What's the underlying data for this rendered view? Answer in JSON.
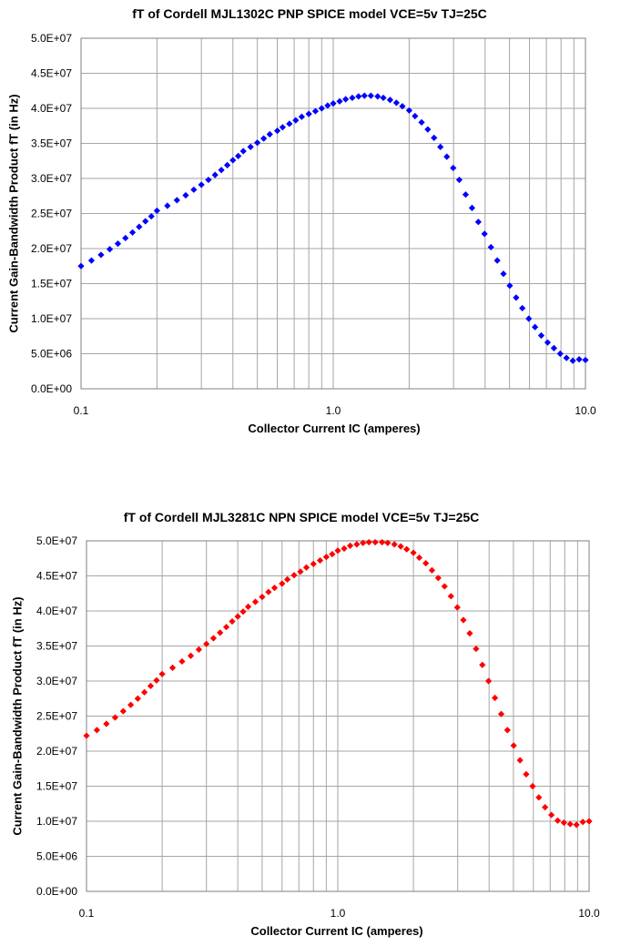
{
  "chart_data": [
    {
      "type": "scatter",
      "title": "fT of Cordell MJL1302C PNP SPICE model  VCE=5v  TJ=25C",
      "xlabel": "Collector Current IC (amperes)",
      "ylabel": "Current Gain-Bandwidth Product   fT (in Hz)",
      "x_scale": "log",
      "xlim": [
        0.1,
        10.0
      ],
      "ylim": [
        0,
        50000000
      ],
      "x_tick_labels": [
        "0.1",
        "1.0",
        "10.0"
      ],
      "y_tick_labels": [
        "0.0E+00",
        "5.0E+06",
        "1.0E+07",
        "1.5E+07",
        "2.0E+07",
        "2.5E+07",
        "3.0E+07",
        "3.5E+07",
        "4.0E+07",
        "4.5E+07",
        "5.0E+07"
      ],
      "grid": true,
      "marker_color": "#0000ff",
      "series": [
        {
          "x": [
            0.1,
            0.11,
            0.12,
            0.13,
            0.14,
            0.15,
            0.16,
            0.17,
            0.18,
            0.19,
            0.2,
            0.22,
            0.24,
            0.26,
            0.28,
            0.3,
            0.32,
            0.34,
            0.36,
            0.38,
            0.4,
            0.42,
            0.44,
            0.47,
            0.5,
            0.53,
            0.56,
            0.6,
            0.63,
            0.67,
            0.71,
            0.75,
            0.8,
            0.85,
            0.9,
            0.95,
            1.0,
            1.06,
            1.12,
            1.19,
            1.26,
            1.33,
            1.41,
            1.5,
            1.58,
            1.68,
            1.78,
            1.88,
            2.0,
            2.11,
            2.24,
            2.37,
            2.51,
            2.66,
            2.82,
            2.99,
            3.16,
            3.35,
            3.55,
            3.76,
            3.98,
            4.22,
            4.47,
            4.73,
            5.01,
            5.31,
            5.62,
            5.96,
            6.31,
            6.68,
            7.08,
            7.5,
            7.94,
            8.41,
            8.91,
            9.44,
            10.0
          ],
          "y": [
            17500000,
            18300000,
            19100000,
            19900000,
            20700000,
            21500000,
            22300000,
            23100000,
            23900000,
            24600000,
            25400000,
            26100000,
            26900000,
            27600000,
            28400000,
            29100000,
            29800000,
            30500000,
            31200000,
            31900000,
            32600000,
            33200000,
            33900000,
            34500000,
            35100000,
            35700000,
            36300000,
            36800000,
            37300000,
            37800000,
            38300000,
            38800000,
            39200000,
            39600000,
            40000000,
            40400000,
            40700000,
            41000000,
            41300000,
            41500000,
            41700000,
            41800000,
            41800000,
            41700000,
            41500000,
            41200000,
            40800000,
            40300000,
            39700000,
            38900000,
            38000000,
            37000000,
            35800000,
            34500000,
            33100000,
            31500000,
            29800000,
            27700000,
            25800000,
            23800000,
            22100000,
            20200000,
            18300000,
            16400000,
            14700000,
            13000000,
            11500000,
            10000000,
            8800000,
            7600000,
            6600000,
            5800000,
            5000000,
            4400000,
            4000000,
            4200000,
            4100000
          ]
        }
      ]
    },
    {
      "type": "scatter",
      "title": "fT of Cordell MJL3281C NPN SPICE model  VCE=5v  TJ=25C",
      "xlabel": "Collector Current IC (amperes)",
      "ylabel": "Current Gain-Bandwidth Product   fT (in Hz)",
      "x_scale": "log",
      "xlim": [
        0.1,
        10.0
      ],
      "ylim": [
        0,
        50000000
      ],
      "x_tick_labels": [
        "0.1",
        "1.0",
        "10.0"
      ],
      "y_tick_labels": [
        "0.0E+00",
        "5.0E+06",
        "1.0E+07",
        "1.5E+07",
        "2.0E+07",
        "2.5E+07",
        "3.0E+07",
        "3.5E+07",
        "4.0E+07",
        "4.5E+07",
        "5.0E+07"
      ],
      "grid": true,
      "marker_color": "#ff0000",
      "series": [
        {
          "x": [
            0.1,
            0.11,
            0.12,
            0.13,
            0.14,
            0.15,
            0.16,
            0.17,
            0.18,
            0.19,
            0.2,
            0.22,
            0.24,
            0.26,
            0.28,
            0.3,
            0.32,
            0.34,
            0.36,
            0.38,
            0.4,
            0.42,
            0.44,
            0.47,
            0.5,
            0.53,
            0.56,
            0.6,
            0.63,
            0.67,
            0.71,
            0.75,
            0.8,
            0.85,
            0.9,
            0.95,
            1.0,
            1.06,
            1.12,
            1.19,
            1.26,
            1.33,
            1.41,
            1.5,
            1.58,
            1.68,
            1.78,
            1.88,
            2.0,
            2.11,
            2.24,
            2.37,
            2.51,
            2.66,
            2.82,
            2.99,
            3.16,
            3.35,
            3.55,
            3.76,
            3.98,
            4.22,
            4.47,
            4.73,
            5.01,
            5.31,
            5.62,
            5.96,
            6.31,
            6.68,
            7.08,
            7.5,
            7.94,
            8.41,
            8.91,
            9.44,
            10.0
          ],
          "y": [
            22200000,
            23000000,
            23900000,
            24800000,
            25700000,
            26600000,
            27500000,
            28400000,
            29300000,
            30100000,
            31000000,
            31900000,
            32800000,
            33600000,
            34500000,
            35300000,
            36100000,
            36900000,
            37700000,
            38500000,
            39200000,
            39900000,
            40600000,
            41300000,
            42000000,
            42700000,
            43300000,
            43900000,
            44500000,
            45100000,
            45600000,
            46200000,
            46700000,
            47200000,
            47700000,
            48100000,
            48600000,
            48900000,
            49300000,
            49500000,
            49700000,
            49800000,
            49800000,
            49800000,
            49700000,
            49500000,
            49200000,
            48800000,
            48300000,
            47600000,
            46800000,
            45800000,
            44700000,
            43500000,
            42100000,
            40500000,
            38700000,
            36800000,
            34600000,
            32300000,
            30000000,
            27600000,
            25300000,
            23000000,
            20800000,
            18700000,
            16700000,
            15000000,
            13400000,
            12000000,
            10900000,
            10100000,
            9800000,
            9600000,
            9500000,
            9900000,
            10000000
          ]
        }
      ]
    }
  ]
}
